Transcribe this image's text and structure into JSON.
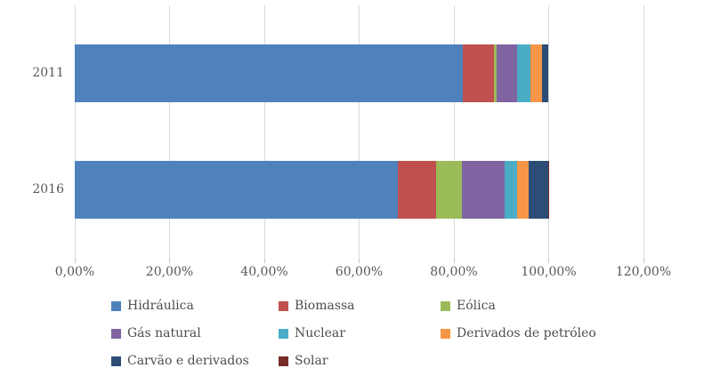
{
  "chart_data": {
    "type": "bar",
    "orientation": "horizontal",
    "stacked": true,
    "title": "",
    "xlabel": "",
    "ylabel": "",
    "xlim": [
      0,
      120
    ],
    "grid": true,
    "legend_position": "bottom",
    "categories": [
      "2011",
      "2016"
    ],
    "x_axis": {
      "tick_labels": [
        "0,00%",
        "20,00%",
        "40,00%",
        "60,00%",
        "80,00%",
        "100,00%",
        "120,00%"
      ],
      "tick_values": [
        0,
        20,
        40,
        60,
        80,
        100,
        120
      ]
    },
    "series": [
      {
        "name": "Hidráulica",
        "color": "#4F81BD",
        "values": [
          81.9,
          68.1
        ]
      },
      {
        "name": "Biomassa",
        "color": "#C0504D",
        "values": [
          6.6,
          8.2
        ]
      },
      {
        "name": "Eólica",
        "color": "#9BBB59",
        "values": [
          0.5,
          5.4
        ]
      },
      {
        "name": "Gás natural",
        "color": "#8064A2",
        "values": [
          4.4,
          9.1
        ]
      },
      {
        "name": "Nuclear",
        "color": "#4BACC6",
        "values": [
          2.7,
          2.6
        ]
      },
      {
        "name": "Derivados de petróleo",
        "color": "#F79646",
        "values": [
          2.5,
          2.4
        ]
      },
      {
        "name": "Carvão e derivados",
        "color": "#2C4D75",
        "values": [
          1.4,
          4.1
        ]
      },
      {
        "name": "Solar",
        "color": "#772C2A",
        "values": [
          0.0,
          0.1
        ]
      }
    ],
    "colors": {
      "gridline": "#d9d9d9",
      "axis_text": "#595959",
      "legend_text": "#4d4d4d",
      "background": "#ffffff"
    }
  }
}
